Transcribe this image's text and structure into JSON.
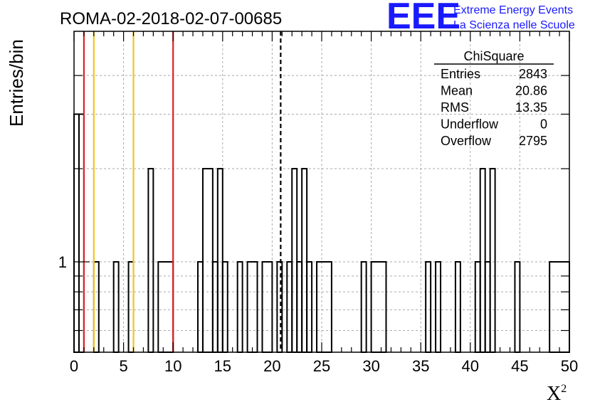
{
  "chart_data": {
    "type": "bar",
    "title": "ROMA-02-2018-02-07-00685",
    "xlabel": "X",
    "xlabel_sup": "2",
    "ylabel": "Entries/bin",
    "xlim": [
      0,
      50
    ],
    "ylog": true,
    "grid": true,
    "bin_width": 0.5,
    "x_ticks": [
      0,
      5,
      10,
      15,
      20,
      25,
      30,
      35,
      40,
      45,
      50
    ],
    "y_tick_labels": [
      {
        "value": 1,
        "label": "1"
      }
    ],
    "bins": [
      {
        "x0": 0.0,
        "x1": 0.5,
        "value": 3
      },
      {
        "x0": 0.5,
        "x1": 1.0,
        "value": 3
      },
      {
        "x0": 2.0,
        "x1": 2.5,
        "value": 1
      },
      {
        "x0": 4.0,
        "x1": 4.5,
        "value": 1
      },
      {
        "x0": 5.5,
        "x1": 6.0,
        "value": 1
      },
      {
        "x0": 7.5,
        "x1": 8.0,
        "value": 2
      },
      {
        "x0": 8.5,
        "x1": 10.0,
        "value": 1
      },
      {
        "x0": 12.5,
        "x1": 13.0,
        "value": 1
      },
      {
        "x0": 13.0,
        "x1": 14.0,
        "value": 2
      },
      {
        "x0": 14.0,
        "x1": 14.5,
        "value": 1
      },
      {
        "x0": 14.5,
        "x1": 15.0,
        "value": 2
      },
      {
        "x0": 15.0,
        "x1": 15.5,
        "value": 1
      },
      {
        "x0": 16.5,
        "x1": 17.0,
        "value": 1
      },
      {
        "x0": 17.5,
        "x1": 18.5,
        "value": 1
      },
      {
        "x0": 19.0,
        "x1": 20.0,
        "value": 1
      },
      {
        "x0": 20.5,
        "x1": 21.0,
        "value": 1
      },
      {
        "x0": 21.5,
        "x1": 22.0,
        "value": 1
      },
      {
        "x0": 22.0,
        "x1": 22.5,
        "value": 2
      },
      {
        "x0": 22.5,
        "x1": 23.0,
        "value": 1
      },
      {
        "x0": 23.0,
        "x1": 23.5,
        "value": 2
      },
      {
        "x0": 23.5,
        "x1": 24.0,
        "value": 1
      },
      {
        "x0": 24.5,
        "x1": 26.0,
        "value": 1
      },
      {
        "x0": 29.0,
        "x1": 29.5,
        "value": 1
      },
      {
        "x0": 30.0,
        "x1": 31.5,
        "value": 1
      },
      {
        "x0": 35.5,
        "x1": 36.0,
        "value": 1
      },
      {
        "x0": 36.5,
        "x1": 37.0,
        "value": 1
      },
      {
        "x0": 38.5,
        "x1": 39.0,
        "value": 1
      },
      {
        "x0": 40.5,
        "x1": 41.0,
        "value": 1
      },
      {
        "x0": 41.0,
        "x1": 41.5,
        "value": 2
      },
      {
        "x0": 41.5,
        "x1": 42.0,
        "value": 1
      },
      {
        "x0": 42.0,
        "x1": 42.5,
        "value": 2
      },
      {
        "x0": 44.5,
        "x1": 45.0,
        "value": 1
      },
      {
        "x0": 48.0,
        "x1": 50.0,
        "value": 1
      }
    ],
    "vertical_lines": [
      {
        "x": 1,
        "color": "#dd2222",
        "style": "solid"
      },
      {
        "x": 2,
        "color": "#f2c420",
        "style": "solid"
      },
      {
        "x": 6,
        "color": "#f2c420",
        "style": "solid"
      },
      {
        "x": 10,
        "color": "#dd2222",
        "style": "solid"
      },
      {
        "x": 20.86,
        "color": "#000000",
        "style": "dashed"
      }
    ],
    "stats_box": {
      "title": "ChiSquare",
      "rows": [
        {
          "label": "Entries",
          "value": "2843"
        },
        {
          "label": "Mean",
          "value": "20.86"
        },
        {
          "label": "RMS",
          "value": "13.35"
        },
        {
          "label": "Underflow",
          "value": "0"
        },
        {
          "label": "Overflow",
          "value": "2795"
        }
      ]
    }
  },
  "logo": {
    "mark": "EEE",
    "line1": "Extreme Energy Events",
    "line2": "La Scienza nelle Scuole",
    "color": "#1a1aff"
  }
}
